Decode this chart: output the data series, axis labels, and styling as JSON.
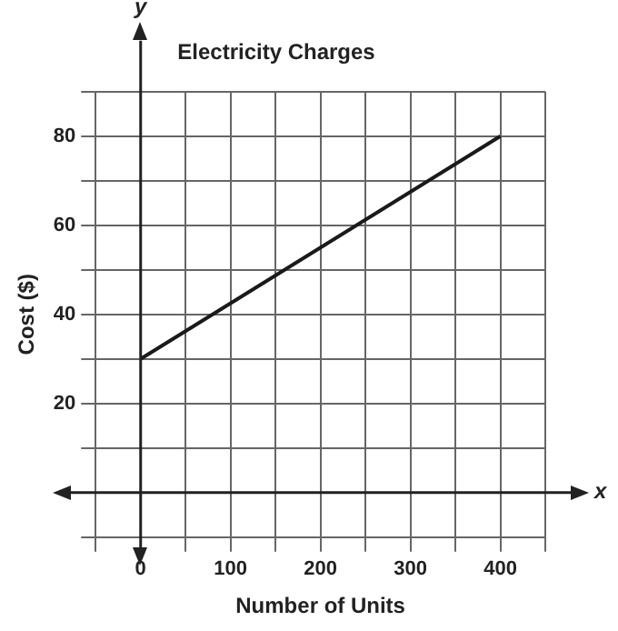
{
  "chart_data": {
    "type": "line",
    "title": "Electricity Charges",
    "xlabel": "Number of Units",
    "ylabel": "Cost ($)",
    "annotations": [
      "x",
      "y"
    ],
    "x": [
      0,
      400
    ],
    "series": [
      {
        "color": "#1a1a1a",
        "values": [
          30,
          80
        ]
      }
    ],
    "xlim": [
      -50,
      450
    ],
    "xticks": [
      {
        "value": -50,
        "label": null
      },
      {
        "value": 0,
        "label": "0"
      },
      {
        "value": 50,
        "label": null
      },
      100,
      {
        "value": 150,
        "label": null
      },
      200,
      {
        "value": 250,
        "label": null
      },
      300,
      {
        "value": 350,
        "label": null
      },
      400,
      {
        "value": 450,
        "label": null
      }
    ],
    "ylim": [
      -10,
      90
    ],
    "yticks": [
      {
        "value": -10,
        "label": null
      },
      {
        "value": 0,
        "label": null
      },
      {
        "value": 10,
        "label": null
      },
      20,
      {
        "value": 30,
        "label": null
      },
      40,
      {
        "value": 50,
        "label": null
      },
      60,
      {
        "value": 70,
        "label": null
      },
      80,
      {
        "value": 90,
        "label": null
      }
    ],
    "grid": true,
    "marker": "none",
    "line_style": "solid"
  }
}
